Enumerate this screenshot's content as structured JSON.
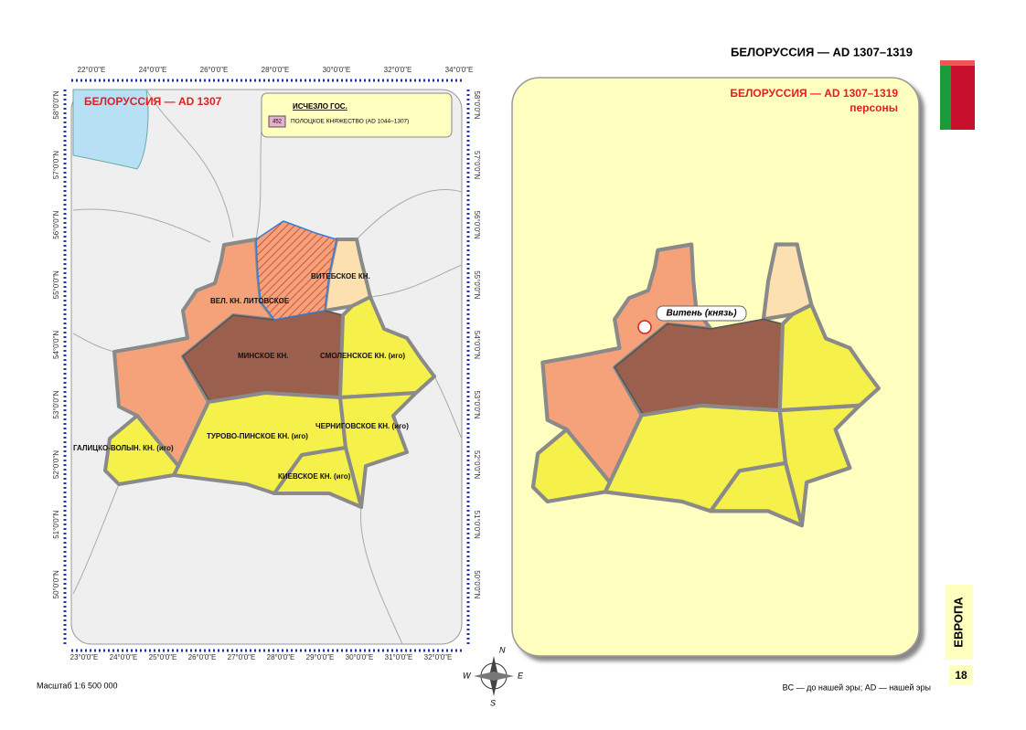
{
  "header": {
    "title": "БЕЛОРУССИЯ — AD 1307–1319"
  },
  "left_map": {
    "title": "БЕЛОРУССИЯ — AD 1307",
    "legend": {
      "heading": "ИСЧЕЗЛО ГОС.",
      "code": "452",
      "label": "ПОЛОЦКОЕ КНЯЖЕСТВО (AD 1044–1307)"
    },
    "top_longitudes": [
      "22°0'0\"E",
      "24°0'0\"E",
      "26°0'0\"E",
      "28°0'0\"E",
      "30°0'0\"E",
      "32°0'0\"E",
      "34°0'0\"E"
    ],
    "bottom_longitudes": [
      "23°0'0\"E",
      "24°0'0\"E",
      "25°0'0\"E",
      "26°0'0\"E",
      "27°0'0\"E",
      "28°0'0\"E",
      "29°0'0\"E",
      "30°0'0\"E",
      "31°0'0\"E",
      "32°0'0\"E"
    ],
    "left_latitudes": [
      "58°0'0\"N",
      "57°0'0\"N",
      "56°0'0\"N",
      "55°0'0\"N",
      "54°0'0\"N",
      "53°0'0\"N",
      "52°0'0\"N",
      "51°0'0\"N",
      "50°0'0\"N"
    ],
    "right_latitudes": [
      "58°0'0\"N",
      "57°0'0\"N",
      "56°0'0\"N",
      "55°0'0\"N",
      "54°0'0\"N",
      "53°0'0\"N",
      "52°0'0\"N",
      "51°0'0\"N",
      "50°0'0\"N"
    ],
    "regions": [
      "ВЕЛ. КН. ЛИТОВСКОЕ",
      "ВИТЕБСКОЕ КН.",
      "МИНСКОЕ КН.",
      "СМОЛЕНСКОЕ КН. (иго)",
      "ТУРОВО-ПИНСКОЕ КН. (иго)",
      "ЧЕРНИГОВСКОЕ КН. (иго)",
      "ГАЛИЦКО-ВОЛЫН. КН. (иго)",
      "КИЕВСКОЕ КН. (иго)"
    ],
    "scale": "Масштаб 1:6 500 000"
  },
  "right_map": {
    "title": "БЕЛОРУССИЯ — AD 1307–1319",
    "subtitle": "персоны",
    "person": "Витень (князь)"
  },
  "compass": {
    "north": "N",
    "west": "W",
    "east": "E",
    "south": "S"
  },
  "footer": {
    "note": "BC — до нашей эры; AD — нашей эры",
    "page_number": "18",
    "section": "ЕВРОПА"
  }
}
